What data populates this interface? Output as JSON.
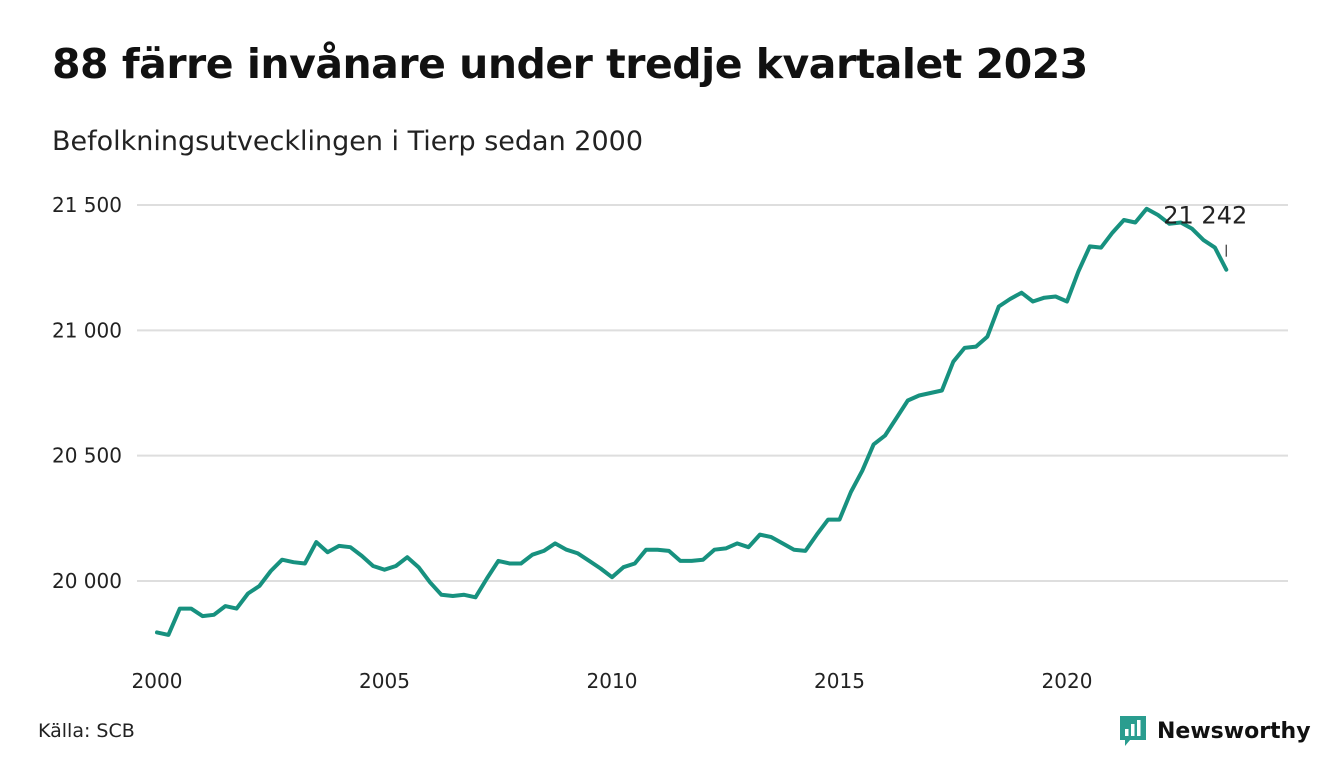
{
  "header": {
    "title": "88 färre invånare under tredje kvartalet 2023",
    "subtitle": "Befolkningsutvecklingen i Tierp sedan 2000"
  },
  "footer": {
    "source": "Källa: SCB",
    "brand": "Newsworthy",
    "brand_color": "#2a9d8f"
  },
  "chart_data": {
    "type": "line",
    "title": "88 färre invånare under tredje kvartalet 2023",
    "subtitle": "Befolkningsutvecklingen i Tierp sedan 2000",
    "xlabel": "",
    "ylabel": "",
    "x_ticks": [
      "2000",
      "2005",
      "2010",
      "2015",
      "2020"
    ],
    "y_ticks": [
      "20 000",
      "20 500",
      "21 000",
      "21 500"
    ],
    "y_tick_values": [
      20000,
      20500,
      21000,
      21500
    ],
    "ylim": [
      19750,
      21550
    ],
    "xlim": [
      2000.0,
      2024.0
    ],
    "grid": true,
    "line_color": "#17917f",
    "end_label": "21 242",
    "series": [
      {
        "name": "",
        "x": [
          2000.0,
          2000.25,
          2000.5,
          2000.75,
          2001.0,
          2001.25,
          2001.5,
          2001.75,
          2002.0,
          2002.25,
          2002.5,
          2002.75,
          2003.0,
          2003.25,
          2003.5,
          2003.75,
          2004.0,
          2004.25,
          2004.5,
          2004.75,
          2005.0,
          2005.25,
          2005.5,
          2005.75,
          2006.0,
          2006.25,
          2006.5,
          2006.75,
          2007.0,
          2007.25,
          2007.5,
          2007.75,
          2008.0,
          2008.25,
          2008.5,
          2008.75,
          2009.0,
          2009.25,
          2009.5,
          2009.75,
          2010.0,
          2010.25,
          2010.5,
          2010.75,
          2011.0,
          2011.25,
          2011.5,
          2011.75,
          2012.0,
          2012.25,
          2012.5,
          2012.75,
          2013.0,
          2013.25,
          2013.5,
          2013.75,
          2014.0,
          2014.25,
          2014.5,
          2014.75,
          2015.0,
          2015.25,
          2015.5,
          2015.75,
          2016.0,
          2016.25,
          2016.5,
          2016.75,
          2017.0,
          2017.25,
          2017.5,
          2017.75,
          2018.0,
          2018.25,
          2018.5,
          2018.75,
          2019.0,
          2019.25,
          2019.5,
          2019.75,
          2020.0,
          2020.25,
          2020.5,
          2020.75,
          2021.0,
          2021.25,
          2021.5,
          2021.75,
          2022.0,
          2022.25,
          2022.5,
          2022.75,
          2023.0,
          2023.25,
          2023.5
        ],
        "y": [
          19795,
          19785,
          19890,
          19890,
          19860,
          19865,
          19900,
          19890,
          19950,
          19980,
          20040,
          20085,
          20075,
          20070,
          20155,
          20115,
          20140,
          20135,
          20100,
          20060,
          20045,
          20060,
          20095,
          20055,
          19995,
          19945,
          19940,
          19945,
          19935,
          20010,
          20080,
          20070,
          20070,
          20105,
          20120,
          20150,
          20125,
          20110,
          20080,
          20050,
          20015,
          20055,
          20070,
          20125,
          20125,
          20120,
          20080,
          20080,
          20085,
          20125,
          20130,
          20150,
          20135,
          20185,
          20175,
          20150,
          20125,
          20120,
          20185,
          20245,
          20245,
          20355,
          20440,
          20545,
          20580,
          20650,
          20720,
          20740,
          20750,
          20760,
          20875,
          20930,
          20935,
          20975,
          21095,
          21125,
          21150,
          21115,
          21130,
          21135,
          21115,
          21235,
          21335,
          21330,
          21390,
          21440,
          21430,
          21485,
          21460,
          21425,
          21430,
          21405,
          21360,
          21330,
          21242
        ]
      }
    ]
  }
}
